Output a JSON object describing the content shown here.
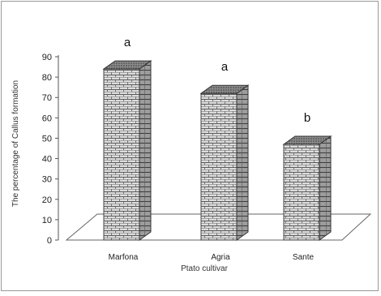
{
  "chart_data": {
    "type": "bar",
    "title": "",
    "xlabel": "Ptato cultivar",
    "ylabel": "The percentage of Callus formation",
    "categories": [
      "Marfona",
      "Agria",
      "Sante"
    ],
    "values": [
      84,
      72,
      47
    ],
    "significance_letters": [
      "a",
      "a",
      "b"
    ],
    "ylim": [
      0,
      90
    ],
    "yticks": [
      "0",
      "10",
      "20",
      "30",
      "40",
      "50",
      "60",
      "70",
      "80",
      "90"
    ],
    "grid": false,
    "legend": "none",
    "style": "3d-brick",
    "colors": {
      "bar_front": "#d8d8d8",
      "bar_side": "#a0a0a0",
      "bar_top": "#888888",
      "axis": "#555555"
    }
  }
}
